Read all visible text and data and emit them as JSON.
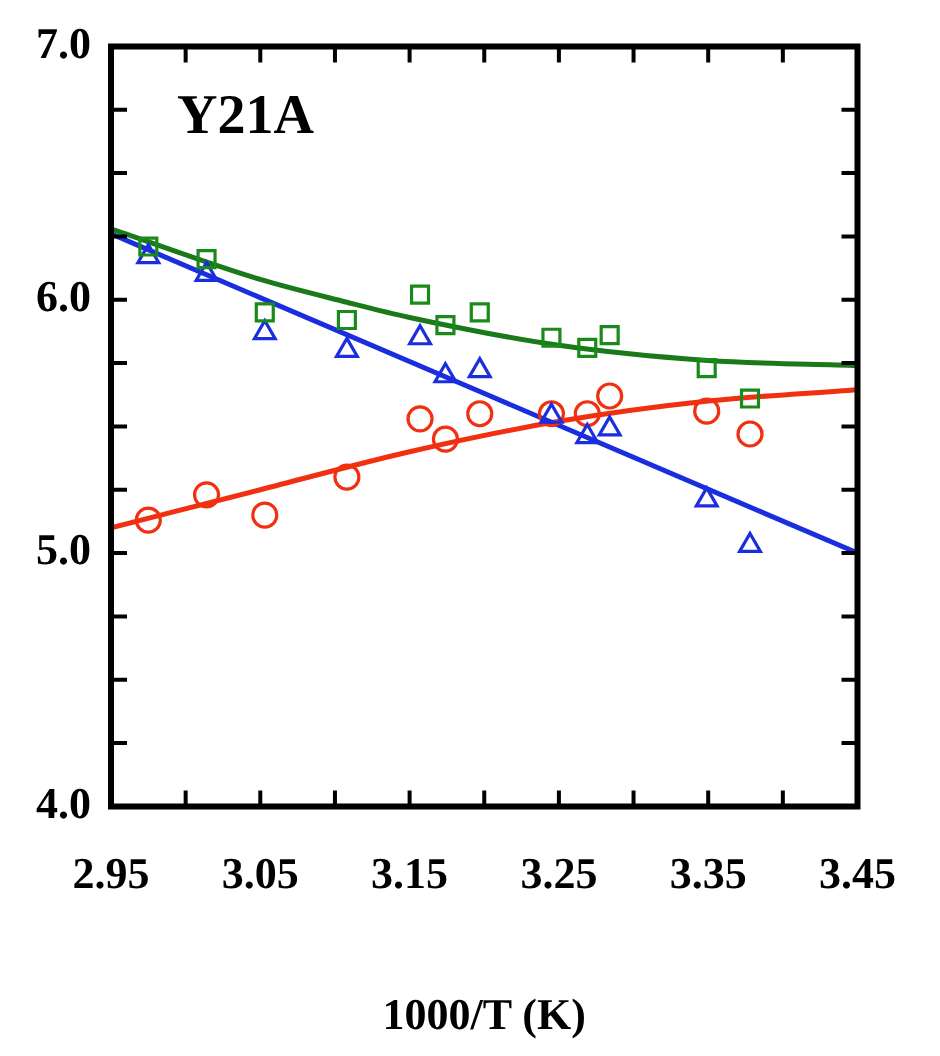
{
  "chart_data": {
    "type": "scatter",
    "title": "Y21A",
    "xlabel": "1000/T (K)",
    "xlim": [
      2.95,
      3.45
    ],
    "ylim": [
      4.0,
      7.0
    ],
    "xticks": [
      2.95,
      {
        "value": 3.0,
        "label": null
      },
      3.05,
      {
        "value": 3.1,
        "label": null
      },
      3.15,
      {
        "value": 3.2,
        "label": null
      },
      3.25,
      {
        "value": 3.3,
        "label": null
      },
      3.35,
      {
        "value": 3.4,
        "label": null
      },
      3.45
    ],
    "yticks": [
      {
        "value": 4.0,
        "label": "4.0"
      },
      {
        "value": 4.25,
        "label": null
      },
      {
        "value": 4.5,
        "label": null
      },
      {
        "value": 4.75,
        "label": null
      },
      {
        "value": 5.0,
        "label": "5.0"
      },
      {
        "value": 5.25,
        "label": null
      },
      {
        "value": 5.5,
        "label": null
      },
      {
        "value": 5.75,
        "label": null
      },
      {
        "value": 6.0,
        "label": "6.0"
      },
      {
        "value": 6.25,
        "label": null
      },
      {
        "value": 6.5,
        "label": null
      },
      {
        "value": 6.75,
        "label": null
      },
      {
        "value": 7.0,
        "label": "7.0"
      }
    ],
    "grid": false,
    "legend": false,
    "x": [
      2.975,
      3.014,
      3.053,
      3.108,
      3.157,
      3.174,
      3.197,
      3.245,
      3.269,
      3.284,
      3.349,
      3.378
    ],
    "series": [
      {
        "color": "#1a8a1a",
        "marker": "square",
        "values": [
          6.21,
          6.16,
          5.95,
          5.92,
          6.02,
          5.9,
          5.95,
          5.85,
          5.81,
          5.86,
          5.73,
          5.61
        ]
      },
      {
        "color": "#1a2ee0",
        "marker": "triangle",
        "values": [
          6.17,
          6.1,
          5.87,
          5.8,
          5.85,
          5.7,
          5.72,
          5.54,
          5.46,
          5.49,
          5.21,
          5.03
        ]
      },
      {
        "color": "#f03010",
        "marker": "circle",
        "values": [
          5.13,
          5.23,
          5.15,
          5.3,
          5.53,
          5.45,
          5.55,
          5.55,
          5.55,
          5.62,
          5.56,
          5.47
        ]
      },
      {
        "type": "line",
        "color": "#1a7a1a",
        "marker": "none",
        "x": [
          2.95,
          3.05,
          3.108,
          3.15,
          3.25,
          3.35,
          3.45
        ],
        "values": [
          6.28,
          6.08,
          5.99,
          5.93,
          5.82,
          5.76,
          5.74
        ]
      },
      {
        "type": "line",
        "color": "#1a2ee0",
        "marker": "none",
        "x": [
          2.95,
          3.45
        ],
        "values": [
          6.26,
          5.0
        ]
      },
      {
        "type": "line",
        "color": "#f03010",
        "marker": "none",
        "x": [
          2.95,
          3.05,
          3.15,
          3.25,
          3.35,
          3.45
        ],
        "values": [
          5.1,
          5.25,
          5.4,
          5.52,
          5.6,
          5.645
        ]
      }
    ]
  }
}
